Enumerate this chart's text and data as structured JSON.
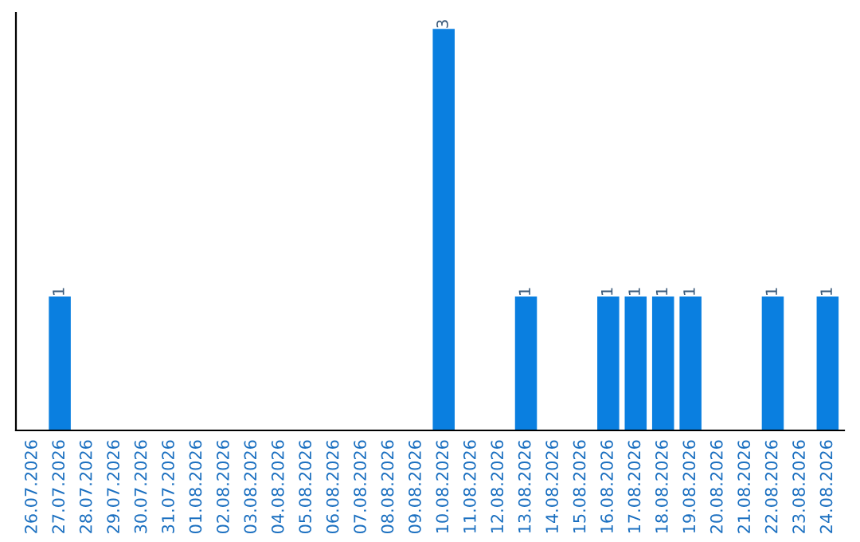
{
  "chart_data": {
    "type": "bar",
    "categories": [
      "26.07.2026",
      "27.07.2026",
      "28.07.2026",
      "29.07.2026",
      "30.07.2026",
      "31.07.2026",
      "01.08.2026",
      "02.08.2026",
      "03.08.2026",
      "04.08.2026",
      "05.08.2026",
      "06.08.2026",
      "07.08.2026",
      "08.08.2026",
      "09.08.2026",
      "10.08.2026",
      "11.08.2026",
      "12.08.2026",
      "13.08.2026",
      "14.08.2026",
      "15.08.2026",
      "16.08.2026",
      "17.08.2026",
      "18.08.2026",
      "19.08.2026",
      "20.08.2026",
      "21.08.2026",
      "22.08.2026",
      "23.08.2026",
      "24.08.2026"
    ],
    "values": [
      0,
      1,
      0,
      0,
      0,
      0,
      0,
      0,
      0,
      0,
      0,
      0,
      0,
      0,
      0,
      3,
      0,
      0,
      1,
      0,
      0,
      1,
      1,
      1,
      1,
      0,
      0,
      1,
      0,
      1
    ],
    "value_labels": [
      null,
      "1",
      null,
      null,
      null,
      null,
      null,
      null,
      null,
      null,
      null,
      null,
      null,
      null,
      null,
      "3",
      null,
      null,
      "1",
      null,
      null,
      "1",
      "1",
      "1",
      "1",
      null,
      null,
      "1",
      null,
      "1"
    ],
    "color": "#0a7fe0",
    "tick_labels": "x",
    "grid": false,
    "legend": false
  }
}
